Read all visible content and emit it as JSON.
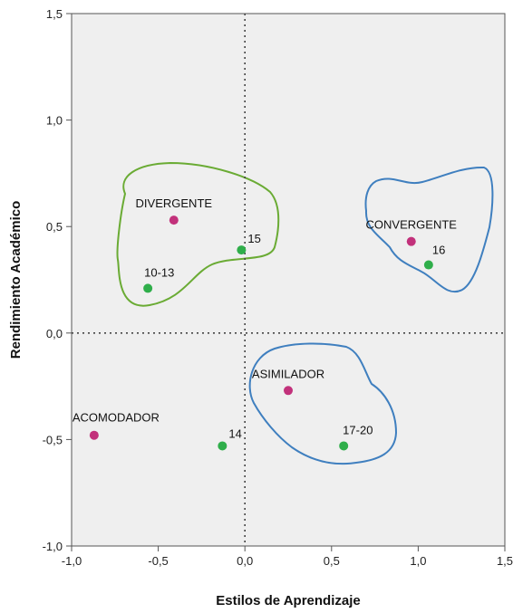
{
  "chart_data": {
    "type": "scatter",
    "title": "",
    "xlabel": "Estilos de Aprendizaje",
    "ylabel": "Rendimiento Académico",
    "xlim": [
      -1.0,
      1.5
    ],
    "ylim": [
      -1.0,
      1.5
    ],
    "x_ticks": [
      -1.0,
      -0.5,
      0.0,
      0.5,
      1.0,
      1.5
    ],
    "y_ticks": [
      -1.0,
      -0.5,
      0.0,
      0.5,
      1.0,
      1.5
    ],
    "x_tick_labels": [
      "-1,0",
      "-0,5",
      "0,0",
      "0,5",
      "1,0",
      "1,5"
    ],
    "y_tick_labels": [
      "-1,0",
      "-0,5",
      "0,0",
      "0,5",
      "1,0",
      "1,5"
    ],
    "reference_lines": {
      "x": 0.0,
      "y": 0.0,
      "style": "dotted"
    },
    "grid": false,
    "background_color": "#efefef",
    "series": [
      {
        "color": "#c2317b",
        "points": [
          {
            "label": "DIVERGENTE",
            "x": -0.41,
            "y": 0.53
          },
          {
            "label": "CONVERGENTE",
            "x": 0.96,
            "y": 0.43
          },
          {
            "label": "ASIMILADOR",
            "x": 0.25,
            "y": -0.27
          },
          {
            "label": "ACOMODADOR",
            "x": -0.87,
            "y": -0.48
          }
        ]
      },
      {
        "color": "#2fae4a",
        "points": [
          {
            "label": "10-13",
            "x": -0.56,
            "y": 0.21
          },
          {
            "label": "15",
            "x": -0.02,
            "y": 0.39
          },
          {
            "label": "16",
            "x": 1.06,
            "y": 0.32
          },
          {
            "label": "17-20",
            "x": 0.57,
            "y": -0.53
          },
          {
            "label": "14",
            "x": -0.13,
            "y": -0.53
          }
        ]
      }
    ],
    "clusters": [
      {
        "name": "divergente-cluster",
        "color": "#6aab34"
      },
      {
        "name": "convergente-cluster",
        "color": "#3f7fbf"
      },
      {
        "name": "asimilador-cluster",
        "color": "#3f7fbf"
      }
    ]
  }
}
